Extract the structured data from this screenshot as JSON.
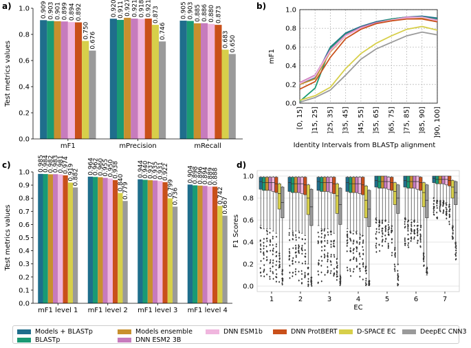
{
  "colors": {
    "Models + BLASTp": "#1f6e8c",
    "BLASTp": "#1a9a74",
    "Models ensemble": "#c8902e",
    "DNN ESM2 3B": "#c77bbd",
    "DNN ESM1b": "#f0b6de",
    "DNN ProtBERT": "#c9501a",
    "D-SPACE EC": "#d7cf4a",
    "DeepEC CNN3": "#9a9a9a"
  },
  "legend": {
    "items": [
      "Models + BLASTp",
      "BLASTp",
      "Models ensemble",
      "DNN ESM2 3B",
      "DNN ESM1b",
      "DNN ProtBERT",
      "D-SPACE EC",
      "DeepEC CNN3"
    ]
  },
  "chart_data": [
    {
      "panel": "a)",
      "type": "bar",
      "ylabel": "Test metrics values",
      "ylim": [
        0,
        1.0
      ],
      "yticks": [
        "0.0",
        "0.2",
        "0.4",
        "0.6",
        "0.8",
        "1.0"
      ],
      "categories": [
        "mF1",
        "mPrecision",
        "mRecall"
      ],
      "series": [
        {
          "name": "Models + BLASTp",
          "values": [
            0.909,
            0.92,
            0.905
          ],
          "labels": [
            "0.909",
            "0.920",
            "0.905"
          ]
        },
        {
          "name": "BLASTp",
          "values": [
            0.903,
            0.911,
            0.903
          ],
          "labels": [
            "0.903",
            "0.911",
            "0.903"
          ]
        },
        {
          "name": "Models ensemble",
          "values": [
            0.901,
            0.927,
            0.885
          ],
          "labels": [
            "0.901",
            "0.927",
            "0.885"
          ]
        },
        {
          "name": "DNN ESM2 3B",
          "values": [
            0.899,
            0.921,
            0.886
          ],
          "labels": [
            "0.899",
            "0.921",
            "0.886"
          ]
        },
        {
          "name": "DNN ESM1b",
          "values": [
            0.894,
            0.918,
            0.88
          ],
          "labels": [
            "0.894",
            "0.918",
            "0.880"
          ]
        },
        {
          "name": "DNN ProtBERT",
          "values": [
            0.892,
            0.921,
            0.873
          ],
          "labels": [
            "0.892",
            "0.921",
            "0.873"
          ]
        },
        {
          "name": "D-SPACE EC",
          "values": [
            0.75,
            0.873,
            0.683
          ],
          "labels": [
            "0.750",
            "0.873",
            "0.683"
          ]
        },
        {
          "name": "DeepEC CNN3",
          "values": [
            0.676,
            0.746,
            0.65
          ],
          "labels": [
            "0.676",
            "0.746",
            "0.650"
          ]
        }
      ]
    },
    {
      "panel": "b)",
      "type": "line",
      "xlabel": "Identity Intervals from BLASTp alignment",
      "ylabel": "mF1",
      "ylim": [
        0,
        1.0
      ],
      "yticks": [
        "0.0",
        "0.2",
        "0.4",
        "0.6",
        "0.8",
        "1.0"
      ],
      "x": [
        "[0, 15]",
        "]15, 25]",
        "]25, 35]",
        "]35, 45]",
        "]45, 55]",
        "]55, 65]",
        "]65, 75]",
        "]75, 85]",
        "]85, 90]",
        "]90, 100]"
      ],
      "series": [
        {
          "name": "Models + BLASTp",
          "values": [
            0.2,
            0.27,
            0.6,
            0.75,
            0.82,
            0.87,
            0.9,
            0.92,
            0.93,
            0.91
          ]
        },
        {
          "name": "BLASTp",
          "values": [
            0.02,
            0.16,
            0.59,
            0.74,
            0.81,
            0.86,
            0.9,
            0.92,
            0.92,
            0.9
          ]
        },
        {
          "name": "Models ensemble",
          "values": [
            0.2,
            0.26,
            0.55,
            0.72,
            0.81,
            0.86,
            0.89,
            0.91,
            0.91,
            0.88
          ]
        },
        {
          "name": "DNN ESM2 3B",
          "values": [
            0.22,
            0.3,
            0.57,
            0.73,
            0.81,
            0.86,
            0.89,
            0.92,
            0.92,
            0.89
          ]
        },
        {
          "name": "DNN ESM1b",
          "values": [
            0.21,
            0.29,
            0.56,
            0.72,
            0.8,
            0.85,
            0.89,
            0.91,
            0.92,
            0.88
          ]
        },
        {
          "name": "DNN ProtBERT",
          "values": [
            0.15,
            0.23,
            0.49,
            0.69,
            0.79,
            0.85,
            0.88,
            0.9,
            0.9,
            0.87
          ]
        },
        {
          "name": "D-SPACE EC",
          "values": [
            0.03,
            0.08,
            0.17,
            0.37,
            0.53,
            0.64,
            0.72,
            0.79,
            0.82,
            0.78
          ]
        },
        {
          "name": "DeepEC CNN3",
          "values": [
            0.01,
            0.06,
            0.14,
            0.3,
            0.47,
            0.58,
            0.65,
            0.72,
            0.76,
            0.73
          ]
        }
      ]
    },
    {
      "panel": "c)",
      "type": "bar",
      "ylabel": "Test metrics values",
      "ylim": [
        0,
        1.0
      ],
      "yticks": [
        "0.0",
        "0.1",
        "0.2",
        "0.3",
        "0.4",
        "0.5",
        "0.6",
        "0.7",
        "0.8",
        "0.9",
        "1.0"
      ],
      "categories": [
        "mF1 level 1",
        "mF1 level 2",
        "mF1 level 3",
        "mF1 level 4"
      ],
      "series": [
        {
          "name": "Models + BLASTp",
          "values": [
            0.985,
            0.964,
            0.944,
            0.904
          ],
          "labels": [
            "0.985",
            "0.964",
            "0.944",
            "0.904"
          ]
        },
        {
          "name": "BLASTp",
          "values": [
            0.984,
            0.962,
            0.94,
            0.898
          ],
          "labels": [
            "0.984",
            "0.962",
            "0.940",
            "0.898"
          ]
        },
        {
          "name": "Models ensemble",
          "values": [
            0.982,
            0.96,
            0.937,
            0.896
          ],
          "labels": [
            "0.982",
            "0.960",
            "0.937",
            "0.896"
          ]
        },
        {
          "name": "DNN ESM2 3B",
          "values": [
            0.983,
            0.955,
            0.935,
            0.894
          ],
          "labels": [
            "0.983",
            "0.955",
            "0.935",
            "0.894"
          ]
        },
        {
          "name": "DNN ESM1b",
          "values": [
            0.981,
            0.95,
            0.931,
            0.889
          ],
          "labels": [
            "0.981",
            "0.950",
            "0.931",
            "0.889"
          ]
        },
        {
          "name": "DNN ProtBERT",
          "values": [
            0.974,
            0.938,
            0.922,
            0.888
          ],
          "labels": [
            "0.974",
            "0.938",
            "0.922",
            "0.888"
          ]
        },
        {
          "name": "D-SPACE EC",
          "values": [
            0.919,
            0.84,
            0.799,
            0.742
          ],
          "labels": [
            "0.919",
            "0.840",
            "0.799",
            "0.742"
          ]
        },
        {
          "name": "DeepEC CNN3",
          "values": [
            0.882,
            0.779,
            0.736,
            0.667
          ],
          "labels": [
            "0.882",
            "0.779",
            "0.736",
            "0.667"
          ]
        }
      ]
    },
    {
      "panel": "d)",
      "type": "box",
      "xlabel": "EC",
      "ylabel": "F1 Scores",
      "ylim": [
        -0.05,
        1.05
      ],
      "yticks": [
        "0.0",
        "0.2",
        "0.4",
        "0.6",
        "0.8",
        "1.0"
      ],
      "categories": [
        "1",
        "2",
        "3",
        "4",
        "5",
        "6",
        "7"
      ],
      "series_order": [
        "Models + BLASTp",
        "BLASTp",
        "Models ensemble",
        "DNN ESM2 3B",
        "DNN ESM1b",
        "DNN ProtBERT",
        "D-SPACE EC",
        "DeepEC CNN3"
      ],
      "stats": {
        "1": {
          "q1": [
            0.88,
            0.87,
            0.87,
            0.87,
            0.86,
            0.85,
            0.7,
            0.62
          ],
          "med": [
            0.95,
            0.94,
            0.94,
            0.94,
            0.94,
            0.93,
            0.84,
            0.76
          ],
          "q3": [
            0.99,
            0.99,
            0.99,
            0.99,
            0.99,
            0.99,
            0.93,
            0.9
          ],
          "lo": [
            0.55,
            0.52,
            0.52,
            0.52,
            0.5,
            0.48,
            0.3,
            0.15
          ],
          "fmin": [
            0.0,
            0.0,
            0.05,
            0.05,
            0.05,
            0.0,
            0.0,
            0.0
          ]
        },
        "2": {
          "q1": [
            0.86,
            0.85,
            0.85,
            0.85,
            0.84,
            0.83,
            0.65,
            0.55
          ],
          "med": [
            0.94,
            0.93,
            0.93,
            0.93,
            0.93,
            0.92,
            0.8,
            0.72
          ],
          "q3": [
            0.99,
            0.99,
            0.99,
            0.99,
            0.99,
            0.99,
            0.92,
            0.88
          ],
          "lo": [
            0.52,
            0.5,
            0.5,
            0.5,
            0.48,
            0.46,
            0.2,
            0.08
          ],
          "fmin": [
            0.0,
            0.0,
            0.05,
            0.05,
            0.0,
            0.0,
            0.0,
            0.0
          ]
        },
        "3": {
          "q1": [
            0.87,
            0.86,
            0.86,
            0.86,
            0.85,
            0.84,
            0.66,
            0.56
          ],
          "med": [
            0.95,
            0.94,
            0.94,
            0.94,
            0.94,
            0.93,
            0.82,
            0.74
          ],
          "q3": [
            0.99,
            0.99,
            0.99,
            0.99,
            0.99,
            0.99,
            0.93,
            0.89
          ],
          "lo": [
            0.55,
            0.52,
            0.52,
            0.52,
            0.5,
            0.48,
            0.25,
            0.1
          ],
          "fmin": [
            0.0,
            0.0,
            0.05,
            0.05,
            0.05,
            0.0,
            0.0,
            0.0
          ]
        },
        "4": {
          "q1": [
            0.86,
            0.85,
            0.85,
            0.85,
            0.84,
            0.83,
            0.62,
            0.54
          ],
          "med": [
            0.94,
            0.93,
            0.93,
            0.93,
            0.93,
            0.92,
            0.78,
            0.7
          ],
          "q3": [
            0.99,
            0.99,
            0.99,
            0.99,
            0.99,
            0.99,
            0.91,
            0.87
          ],
          "lo": [
            0.52,
            0.5,
            0.5,
            0.5,
            0.48,
            0.46,
            0.18,
            0.05
          ],
          "fmin": [
            0.05,
            0.05,
            0.1,
            0.1,
            0.05,
            0.05,
            0.0,
            0.0
          ]
        },
        "5": {
          "q1": [
            0.9,
            0.89,
            0.89,
            0.89,
            0.88,
            0.87,
            0.74,
            0.66
          ],
          "med": [
            0.96,
            0.95,
            0.95,
            0.95,
            0.95,
            0.94,
            0.86,
            0.8
          ],
          "q3": [
            1.0,
            1.0,
            1.0,
            1.0,
            0.99,
            0.99,
            0.94,
            0.92
          ],
          "lo": [
            0.62,
            0.6,
            0.6,
            0.6,
            0.58,
            0.55,
            0.35,
            0.2
          ],
          "fmin": [
            0.3,
            0.3,
            0.35,
            0.35,
            0.3,
            0.25,
            0.1,
            0.0
          ]
        },
        "6": {
          "q1": [
            0.9,
            0.89,
            0.89,
            0.89,
            0.88,
            0.87,
            0.72,
            0.62
          ],
          "med": [
            0.96,
            0.95,
            0.95,
            0.95,
            0.95,
            0.94,
            0.85,
            0.78
          ],
          "q3": [
            1.0,
            1.0,
            1.0,
            1.0,
            1.0,
            0.99,
            0.94,
            0.92
          ],
          "lo": [
            0.62,
            0.6,
            0.6,
            0.6,
            0.58,
            0.55,
            0.3,
            0.1
          ],
          "fmin": [
            0.35,
            0.35,
            0.4,
            0.4,
            0.35,
            0.3,
            0.15,
            0.18
          ]
        },
        "7": {
          "q1": [
            0.94,
            0.93,
            0.93,
            0.93,
            0.92,
            0.91,
            0.8,
            0.74
          ],
          "med": [
            0.98,
            0.97,
            0.97,
            0.97,
            0.97,
            0.96,
            0.9,
            0.85
          ],
          "q3": [
            1.0,
            1.0,
            1.0,
            1.0,
            1.0,
            1.0,
            0.96,
            0.95
          ],
          "lo": [
            0.8,
            0.78,
            0.78,
            0.78,
            0.76,
            0.74,
            0.55,
            0.4
          ],
          "fmin": [
            0.6,
            0.6,
            0.65,
            0.65,
            0.6,
            0.55,
            0.4,
            0.2
          ]
        }
      }
    }
  ]
}
